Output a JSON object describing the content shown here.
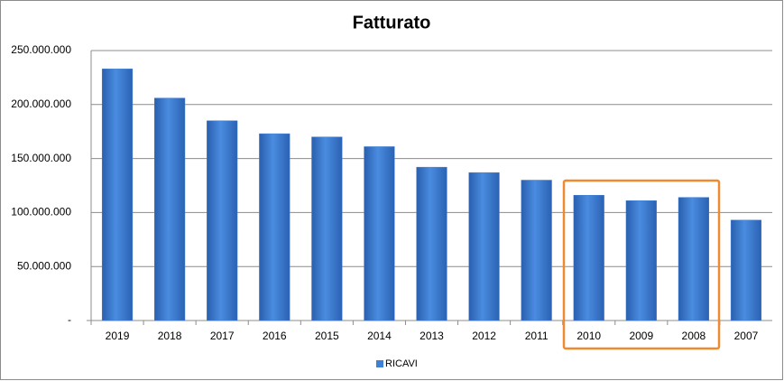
{
  "chart_data": {
    "type": "bar",
    "title": "Fatturato",
    "categories": [
      "2019",
      "2018",
      "2017",
      "2016",
      "2015",
      "2014",
      "2013",
      "2012",
      "2011",
      "2010",
      "2009",
      "2008",
      "2007"
    ],
    "series": [
      {
        "name": "RICAVI",
        "color": "#3f7fd4",
        "values": [
          233000000,
          206000000,
          185000000,
          173000000,
          170000000,
          161000000,
          142000000,
          137000000,
          130000000,
          116000000,
          111000000,
          114000000,
          93000000
        ]
      }
    ],
    "ylim": [
      0,
      250000000
    ],
    "yticks": [
      {
        "value": 0,
        "label": "-"
      },
      {
        "value": 50000000,
        "label": "50.000.000"
      },
      {
        "value": 100000000,
        "label": "100.000.000"
      },
      {
        "value": 150000000,
        "label": "150.000.000"
      },
      {
        "value": 200000000,
        "label": "200.000.000"
      },
      {
        "value": 250000000,
        "label": "250.000.000"
      }
    ],
    "grid": true,
    "legend": "bottom"
  }
}
